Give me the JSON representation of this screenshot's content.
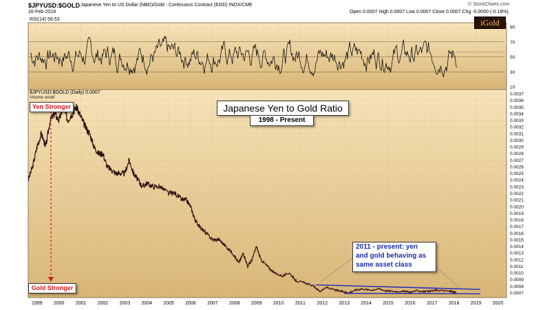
{
  "header": {
    "symbol": "$JPYUSD:$GOLD",
    "description": "Japanese Yen to US Dollar (NBD)/Gold - Continuous Contract (EOD) INDX/CME",
    "date": "16-Feb-2018",
    "ohlc": "Open 0.0007  High 0.0007  Low 0.0007  Close 0.0007  Chg -0.0000 (-0.18%)",
    "watermark": "© StockCharts.com",
    "logo": "iGold"
  },
  "rsi": {
    "label": "RSI(14) 56.53",
    "ticks": [
      "90",
      "70",
      "50",
      "30",
      "10"
    ]
  },
  "legend": {
    "main": "$JPYUSD:$GOLD (Daily) 0.0007",
    "volume": "Volume undef"
  },
  "annotations": {
    "title": "Japanese Yen to Gold Ratio",
    "subtitle": "1998 - Present",
    "yen_stronger": "Yen Stronger",
    "gold_stronger": "Gold Stronger",
    "note_lines": [
      "2011 - present: yen",
      "and gold behaving as",
      "same asset class"
    ]
  },
  "colors": {
    "panel_top": "#f6e3b8",
    "panel_bottom": "#d9b677",
    "price_line": "#111111",
    "up_accent": "#b11d1d",
    "trend_line": "#2a31b8",
    "annotation_red": "#d0161b",
    "note_blue": "#1d2fb0"
  },
  "chart_data": {
    "type": "line",
    "title": "Japanese Yen to Gold Ratio",
    "subtitle": "1998 - Present",
    "x_unit": "year",
    "y_ticks": [
      "0.0037",
      "0.0036",
      "0.0035",
      "0.0034",
      "0.0033",
      "0.0032",
      "0.0031",
      "0.0030",
      "0.0029",
      "0.0028",
      "0.0027",
      "0.0026",
      "0.0025",
      "0.0024",
      "0.0023",
      "0.0022",
      "0.0021",
      "0.0020",
      "0.0019",
      "0.0018",
      "0.0017",
      "0.0016",
      "0.0015",
      "0.0014",
      "0.0013",
      "0.0012",
      "0.0011",
      "0.0010",
      "0.0009",
      "0.0008",
      "0.0007"
    ],
    "x_ticks": [
      "1999",
      "2000",
      "2001",
      "2002",
      "2003",
      "2004",
      "2005",
      "2006",
      "2007",
      "2008",
      "2009",
      "2010",
      "2011",
      "2012",
      "2013",
      "2014",
      "2015",
      "2016",
      "2017",
      "2018",
      "2019",
      "2020"
    ],
    "ylim": [
      0.00062,
      0.0037
    ],
    "xlim": [
      1998.6,
      2020.3
    ],
    "series": [
      {
        "points": [
          [
            1998.6,
            0.0024
          ],
          [
            1998.8,
            0.0026
          ],
          [
            1999.0,
            0.0029
          ],
          [
            1999.2,
            0.0031
          ],
          [
            1999.4,
            0.0029
          ],
          [
            1999.6,
            0.0033
          ],
          [
            1999.8,
            0.0034
          ],
          [
            2000.0,
            0.0033
          ],
          [
            2000.2,
            0.0035
          ],
          [
            2000.4,
            0.0033
          ],
          [
            2000.6,
            0.0034
          ],
          [
            2000.8,
            0.0035
          ],
          [
            2001.0,
            0.00335
          ],
          [
            2001.2,
            0.0032
          ],
          [
            2001.4,
            0.0031
          ],
          [
            2001.6,
            0.0029
          ],
          [
            2001.8,
            0.0028
          ],
          [
            2002.0,
            0.0028
          ],
          [
            2002.2,
            0.0026
          ],
          [
            2002.4,
            0.00255
          ],
          [
            2002.6,
            0.0025
          ],
          [
            2002.8,
            0.0025
          ],
          [
            2003.0,
            0.0025
          ],
          [
            2003.2,
            0.0027
          ],
          [
            2003.4,
            0.0025
          ],
          [
            2003.6,
            0.0024
          ],
          [
            2003.8,
            0.0023
          ],
          [
            2004.0,
            0.00235
          ],
          [
            2004.3,
            0.0023
          ],
          [
            2004.6,
            0.0023
          ],
          [
            2005.0,
            0.0022
          ],
          [
            2005.3,
            0.0022
          ],
          [
            2005.6,
            0.0021
          ],
          [
            2005.8,
            0.0021
          ],
          [
            2006.0,
            0.002
          ],
          [
            2006.2,
            0.0018
          ],
          [
            2006.4,
            0.0017
          ],
          [
            2006.7,
            0.0016
          ],
          [
            2007.0,
            0.0015
          ],
          [
            2007.3,
            0.0015
          ],
          [
            2007.6,
            0.0014
          ],
          [
            2007.9,
            0.0013
          ],
          [
            2008.2,
            0.00115
          ],
          [
            2008.4,
            0.0013
          ],
          [
            2008.6,
            0.0011
          ],
          [
            2008.8,
            0.0012
          ],
          [
            2009.0,
            0.0014
          ],
          [
            2009.2,
            0.0012
          ],
          [
            2009.5,
            0.0011
          ],
          [
            2009.8,
            0.001
          ],
          [
            2010.2,
            0.00095
          ],
          [
            2010.5,
            0.001
          ],
          [
            2010.8,
            0.00088
          ],
          [
            2011.2,
            0.00085
          ],
          [
            2011.6,
            0.0008
          ],
          [
            2011.9,
            0.00072
          ],
          [
            2012.2,
            0.00078
          ],
          [
            2012.6,
            0.00074
          ],
          [
            2012.9,
            0.00072
          ],
          [
            2013.2,
            0.0007
          ],
          [
            2013.5,
            0.00074
          ],
          [
            2013.8,
            0.00076
          ],
          [
            2014.2,
            0.00074
          ],
          [
            2014.6,
            0.00076
          ],
          [
            2014.9,
            0.00073
          ],
          [
            2015.3,
            0.00072
          ],
          [
            2015.7,
            0.00072
          ],
          [
            2016.0,
            0.00071
          ],
          [
            2016.3,
            0.00073
          ],
          [
            2016.6,
            0.00072
          ],
          [
            2016.9,
            0.00072
          ],
          [
            2017.2,
            0.00074
          ],
          [
            2017.6,
            0.00073
          ],
          [
            2017.9,
            0.00072
          ],
          [
            2018.1,
            0.0007
          ]
        ]
      }
    ],
    "trendlines": [
      {
        "from": [
          2011.7,
          0.00082
        ],
        "to": [
          2019.2,
          0.00075
        ]
      },
      {
        "from": [
          2013.0,
          0.00069
        ],
        "to": [
          2019.2,
          0.000685
        ]
      }
    ],
    "rsi_ylim": [
      10,
      90
    ],
    "rsi_reference_lines": [
      30,
      50,
      70
    ]
  }
}
